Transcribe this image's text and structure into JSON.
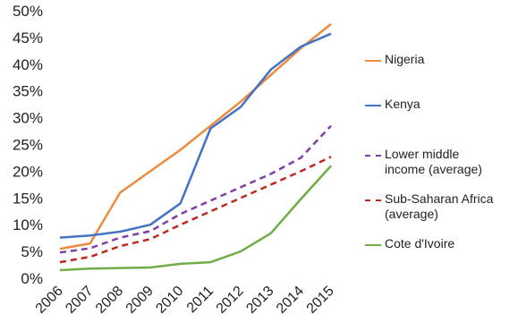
{
  "chart_data": {
    "type": "line",
    "categories": [
      "2006",
      "2007",
      "2008",
      "2009",
      "2010",
      "2011",
      "2012",
      "2013",
      "2014",
      "2015"
    ],
    "y_ticks": [
      "0%",
      "5%",
      "10%",
      "15%",
      "20%",
      "25%",
      "30%",
      "35%",
      "40%",
      "45%",
      "50%"
    ],
    "ylim": [
      0,
      50
    ],
    "y_unit": "%",
    "grid": false,
    "legend_position": "right",
    "series": [
      {
        "name": "Nigeria",
        "color": "#ED8B3D",
        "dash": "solid",
        "values": [
          5.5,
          6.5,
          16.0,
          20.0,
          24.0,
          28.5,
          33.0,
          38.0,
          43.0,
          47.5
        ]
      },
      {
        "name": "Kenya",
        "color": "#4472C4",
        "dash": "solid",
        "values": [
          7.6,
          8.0,
          8.7,
          10.0,
          14.0,
          28.0,
          32.0,
          39.0,
          43.3,
          45.7
        ]
      },
      {
        "name": "Lower middle\nincome (average)",
        "color": "#7F3FA8",
        "dash": "dashed",
        "values": [
          4.8,
          5.6,
          7.6,
          8.8,
          12.0,
          14.5,
          17.0,
          19.5,
          22.5,
          28.5
        ]
      },
      {
        "name": "Sub-Saharan Africa\n(average)",
        "color": "#C0281E",
        "dash": "dashed",
        "values": [
          3.0,
          4.0,
          6.0,
          7.3,
          10.0,
          12.5,
          15.0,
          17.5,
          20.0,
          22.7
        ]
      },
      {
        "name": "Cote d'Ivoire",
        "color": "#70AD47",
        "dash": "solid",
        "values": [
          1.5,
          1.8,
          1.9,
          2.0,
          2.7,
          3.0,
          5.0,
          8.4,
          14.8,
          21.0
        ]
      }
    ]
  }
}
